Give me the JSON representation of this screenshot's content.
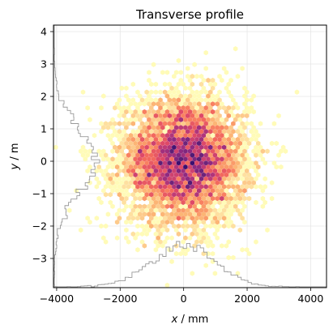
{
  "chart_data": {
    "type": "heatmap",
    "title": "Transverse profile",
    "xlabel_var": "x",
    "xlabel_unit": " / mm",
    "ylabel_var": "y",
    "ylabel_unit": " / m",
    "xlim": [
      -4100,
      4500
    ],
    "ylim": [
      -3.9,
      4.2
    ],
    "xticks": [
      -4000,
      -2000,
      0,
      2000,
      4000
    ],
    "xtick_labels": [
      "−4000",
      "−2000",
      "0",
      "2000",
      "4000"
    ],
    "yticks": [
      -3,
      -2,
      -1,
      0,
      1,
      2,
      3,
      4
    ],
    "ytick_labels": [
      "−3",
      "−2",
      "−1",
      "0",
      "1",
      "2",
      "3",
      "4"
    ],
    "grid": true,
    "colormap": "magma_r",
    "colormap_stops": [
      "#fffbb8",
      "#fed799",
      "#fcae6e",
      "#f7705c",
      "#de4968",
      "#b73779",
      "#8c2981",
      "#5c1f76",
      "#3b0f70"
    ],
    "distribution": {
      "x_mean": 0,
      "x_std": 1000,
      "y_mean": 0,
      "y_std": 1.0,
      "samples": 5000,
      "hex_gridsize": 60
    },
    "marginal_histograms": {
      "color": "#9a9a9a",
      "x_histogram_location": "bottom",
      "y_histogram_location": "left",
      "bins": 80
    }
  }
}
